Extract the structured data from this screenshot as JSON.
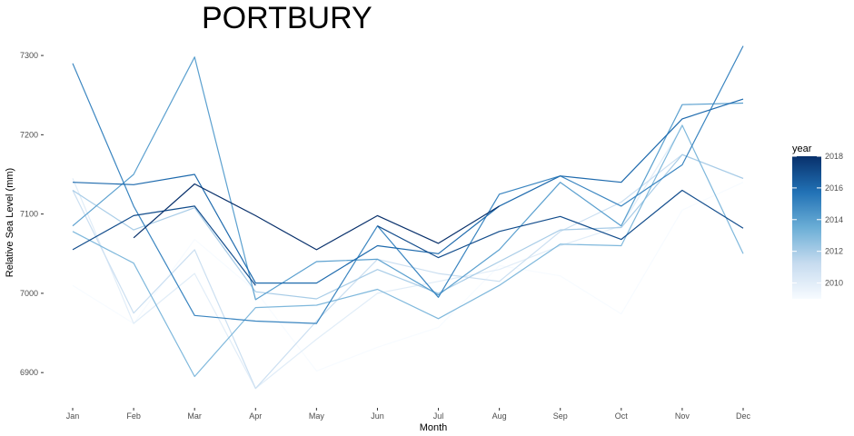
{
  "chart_data": {
    "type": "line",
    "title": "PORTBURY",
    "xlabel": "Month",
    "ylabel": "Relative Sea Level (mm)",
    "categories": [
      "Jan",
      "Feb",
      "Mar",
      "Apr",
      "May",
      "Jun",
      "Jul",
      "Aug",
      "Sep",
      "Oct",
      "Nov",
      "Dec"
    ],
    "ylim": [
      6875,
      7315
    ],
    "yticks": [
      6900,
      7000,
      7100,
      7200,
      7300
    ],
    "grid": false,
    "legend": {
      "title": "year",
      "position": "right",
      "type": "colorbar",
      "range": [
        2009,
        2018
      ],
      "ticks": [
        "2010",
        "2012",
        "2014",
        "2016",
        "2018"
      ],
      "colors": [
        "#f7fbff",
        "#08306b"
      ]
    },
    "series": [
      {
        "year": 2009,
        "values": [
          7010,
          6962,
          7068,
          7003,
          6902,
          6932,
          6957,
          7035,
          7022,
          6974,
          7105,
          7140
        ]
      },
      {
        "year": 2010,
        "values": [
          7145,
          6962,
          7025,
          6880,
          6942,
          7000,
          7015,
          7030,
          7060,
          7085,
          7210,
          null
        ]
      },
      {
        "year": 2011,
        "values": [
          7130,
          6975,
          7055,
          6880,
          6965,
          7043,
          7025,
          7015,
          7078,
          7115,
          7175,
          7145
        ]
      },
      {
        "year": 2012,
        "values": [
          7130,
          7080,
          7108,
          7002,
          6993,
          7030,
          7000,
          7040,
          7080,
          7083,
          7175,
          7145
        ]
      },
      {
        "year": 2013,
        "values": [
          7078,
          7038,
          6895,
          6982,
          6985,
          7005,
          6968,
          7010,
          7062,
          7060,
          7212,
          7050
        ]
      },
      {
        "year": 2014,
        "values": [
          7085,
          7150,
          7298,
          6992,
          7040,
          7043,
          6998,
          7055,
          7140,
          7085,
          7238,
          7240
        ]
      },
      {
        "year": 2015,
        "values": [
          7290,
          7110,
          6972,
          6965,
          6962,
          7085,
          6995,
          7125,
          7148,
          7110,
          7162,
          7312
        ]
      },
      {
        "year": 2016,
        "values": [
          7140,
          7137,
          7150,
          7013,
          7013,
          7060,
          7050,
          7110,
          7148,
          7140,
          7220,
          7245
        ]
      },
      {
        "year": 2017,
        "values": [
          7055,
          7098,
          7110,
          7010,
          null,
          7085,
          7045,
          7078,
          7097,
          7068,
          7130,
          7082
        ]
      },
      {
        "year": 2018,
        "values": [
          null,
          7070,
          7138,
          7098,
          7055,
          7098,
          7063,
          7110,
          null,
          null,
          null,
          null
        ]
      }
    ]
  }
}
